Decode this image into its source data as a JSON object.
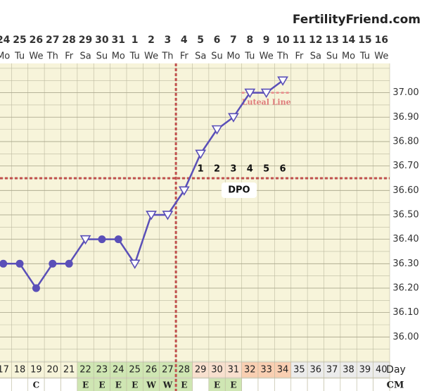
{
  "chart_data": {
    "type": "line",
    "title": "FertilityFriend.com",
    "x": [
      17,
      18,
      19,
      20,
      21,
      22,
      23,
      24,
      25,
      26,
      27,
      28,
      29,
      30,
      31,
      32,
      33,
      34,
      35,
      36,
      37,
      38,
      39,
      40
    ],
    "dates": [
      "24",
      "25",
      "26",
      "27",
      "28",
      "29",
      "30",
      "31",
      "1",
      "2",
      "3",
      "4",
      "5",
      "6",
      "7",
      "8",
      "9",
      "10",
      "11",
      "12",
      "13",
      "14",
      "15",
      "16"
    ],
    "weekdays": [
      "Mo",
      "Tu",
      "We",
      "Th",
      "Fr",
      "Sa",
      "Su",
      "Mo",
      "Tu",
      "We",
      "Th",
      "Fr",
      "Sa",
      "Su",
      "Mo",
      "Tu",
      "We",
      "Th",
      "Fr",
      "Sa",
      "Su",
      "Mo",
      "Tu",
      "We"
    ],
    "series": [
      {
        "name": "Temperature",
        "color": "#5a4fb8",
        "values": [
          36.3,
          36.3,
          36.2,
          36.3,
          36.3,
          36.4,
          36.4,
          36.4,
          36.3,
          36.5,
          36.5,
          36.6,
          36.75,
          36.85,
          36.9,
          37.0,
          37.0,
          37.05,
          null,
          null,
          null,
          null,
          null,
          null
        ],
        "markers": [
          "circle",
          "circle",
          "circle",
          "circle",
          "circle",
          "triangle",
          "circle",
          "circle",
          "triangle",
          "triangle",
          "triangle",
          "triangle",
          "triangle",
          "triangle",
          "triangle",
          "triangle",
          "triangle",
          "triangle",
          null,
          null,
          null,
          null,
          null,
          null
        ]
      }
    ],
    "xlim": [
      16.8,
      40.5
    ],
    "ylim": [
      35.9,
      37.12
    ],
    "yticks": [
      {
        "value": 36.0,
        "label": "36.00"
      },
      {
        "value": 36.1,
        "label": "36.10"
      },
      {
        "value": 36.2,
        "label": "36.20"
      },
      {
        "value": 36.3,
        "label": "36.30"
      },
      {
        "value": 36.4,
        "label": "36.40"
      },
      {
        "value": 36.5,
        "label": "36.50"
      },
      {
        "value": 36.6,
        "label": "36.60"
      },
      {
        "value": 36.7,
        "label": "36.70"
      },
      {
        "value": 36.8,
        "label": "36.80"
      },
      {
        "value": 36.9,
        "label": "36.90"
      },
      {
        "value": 37.0,
        "label": "37.00"
      }
    ],
    "minor_grid_step": 0.05,
    "coverline": 36.65,
    "ovulation_day": 28,
    "luteal_line": {
      "label": "Luteal Line",
      "value": 37.0,
      "from": 32,
      "to": 34
    },
    "dpo": {
      "label": "DPO",
      "values": [
        1,
        2,
        3,
        4,
        5,
        6
      ],
      "days": [
        29,
        30,
        31,
        32,
        33,
        34
      ]
    },
    "day_label": "Day",
    "day_colors": [
      "#f7f4da",
      "#f7f4da",
      "#f7f4da",
      "#f7f4da",
      "#f7f4da",
      "#cfe6b3",
      "#cfe6b3",
      "#cfe6b3",
      "#cfe6b3",
      "#cfe6b3",
      "#cfe6b3",
      "#cfe6b3",
      "#f8e0cf",
      "#f8e0cf",
      "#f8e0cf",
      "#f9cfb2",
      "#f9cfb2",
      "#f9cfb2",
      "#ececec",
      "#ececec",
      "#ececec",
      "#ececec",
      "#ececec",
      "#ececec"
    ],
    "cm_label": "CM",
    "cm": [
      null,
      null,
      "C",
      null,
      null,
      "E",
      "E",
      "E",
      "E",
      "W",
      "W",
      "E",
      null,
      "E",
      "E",
      null,
      null,
      null,
      null,
      null,
      null,
      null,
      null,
      null
    ],
    "cm_colors": [
      "#ffffff",
      "#ffffff",
      "#ffffff",
      "#ffffff",
      "#ffffff",
      "#cfe6b3",
      "#cfe6b3",
      "#cfe6b3",
      "#cfe6b3",
      "#cfe6b3",
      "#cfe6b3",
      "#cfe6b3",
      "#ffffff",
      "#cfe6b3",
      "#cfe6b3",
      "#ffffff",
      "#ffffff",
      "#ffffff",
      "#ffffff",
      "#ffffff",
      "#ffffff",
      "#ffffff",
      "#ffffff",
      "#ffffff"
    ]
  }
}
